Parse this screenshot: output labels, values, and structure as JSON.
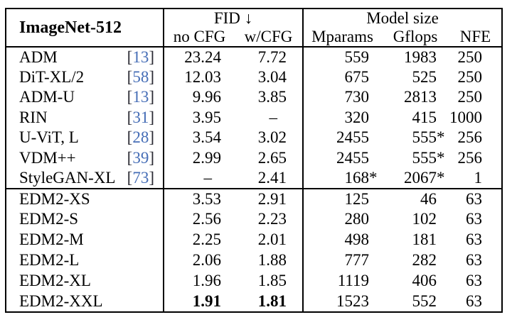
{
  "table": {
    "title": "ImageNet-512",
    "groups": {
      "fid_label": "FID ↓",
      "model_size_label": "Model size"
    },
    "columns": {
      "no_cfg": "no CFG",
      "w_cfg": "w/CFG",
      "mparams": "Mparams",
      "gflops": "Gflops",
      "nfe": "NFE"
    },
    "cite_bracket_open": "[",
    "cite_bracket_close": "]",
    "colors": {
      "citation_blue": "#456db6",
      "text": "#000000",
      "border": "#000000",
      "background": "#ffffff"
    },
    "baseline_rows": [
      {
        "name": "ADM",
        "ref": "13",
        "no_cfg": "23.24",
        "w_cfg": "7.72",
        "mparams": "559",
        "gflops": "1983",
        "nfe": "250"
      },
      {
        "name": "DiT-XL/2",
        "ref": "58",
        "no_cfg": "12.03",
        "w_cfg": "3.04",
        "mparams": "675",
        "gflops": "525",
        "nfe": "250"
      },
      {
        "name": "ADM-U",
        "ref": "13",
        "no_cfg": "9.96",
        "w_cfg": "3.85",
        "mparams": "730",
        "gflops": "2813",
        "nfe": "250"
      },
      {
        "name": "RIN",
        "ref": "31",
        "no_cfg": "3.95",
        "w_cfg": "–",
        "mparams": "320",
        "gflops": "415",
        "nfe": "1000"
      },
      {
        "name": "U-ViT, L",
        "ref": "28",
        "no_cfg": "3.54",
        "w_cfg": "3.02",
        "mparams": "2455",
        "gflops": "555*",
        "nfe": "256"
      },
      {
        "name": "VDM++",
        "ref": "39",
        "no_cfg": "2.99",
        "w_cfg": "2.65",
        "mparams": "2455",
        "gflops": "555*",
        "nfe": "256"
      },
      {
        "name": "StyleGAN-XL",
        "ref": "73",
        "no_cfg": "–",
        "w_cfg": "2.41",
        "mparams": "168*",
        "gflops": "2067*",
        "nfe": "1"
      }
    ],
    "edm2_rows": [
      {
        "name": "EDM2-XS",
        "no_cfg": "3.53",
        "w_cfg": "2.91",
        "mparams": "125",
        "gflops": "46",
        "nfe": "63"
      },
      {
        "name": "EDM2-S",
        "no_cfg": "2.56",
        "w_cfg": "2.23",
        "mparams": "280",
        "gflops": "102",
        "nfe": "63"
      },
      {
        "name": "EDM2-M",
        "no_cfg": "2.25",
        "w_cfg": "2.01",
        "mparams": "498",
        "gflops": "181",
        "nfe": "63"
      },
      {
        "name": "EDM2-L",
        "no_cfg": "2.06",
        "w_cfg": "1.88",
        "mparams": "777",
        "gflops": "282",
        "nfe": "63"
      },
      {
        "name": "EDM2-XL",
        "no_cfg": "1.96",
        "w_cfg": "1.85",
        "mparams": "1119",
        "gflops": "406",
        "nfe": "63"
      },
      {
        "name": "EDM2-XXL",
        "no_cfg": "1.91",
        "w_cfg": "1.81",
        "mparams": "1523",
        "gflops": "552",
        "nfe": "63"
      }
    ]
  }
}
